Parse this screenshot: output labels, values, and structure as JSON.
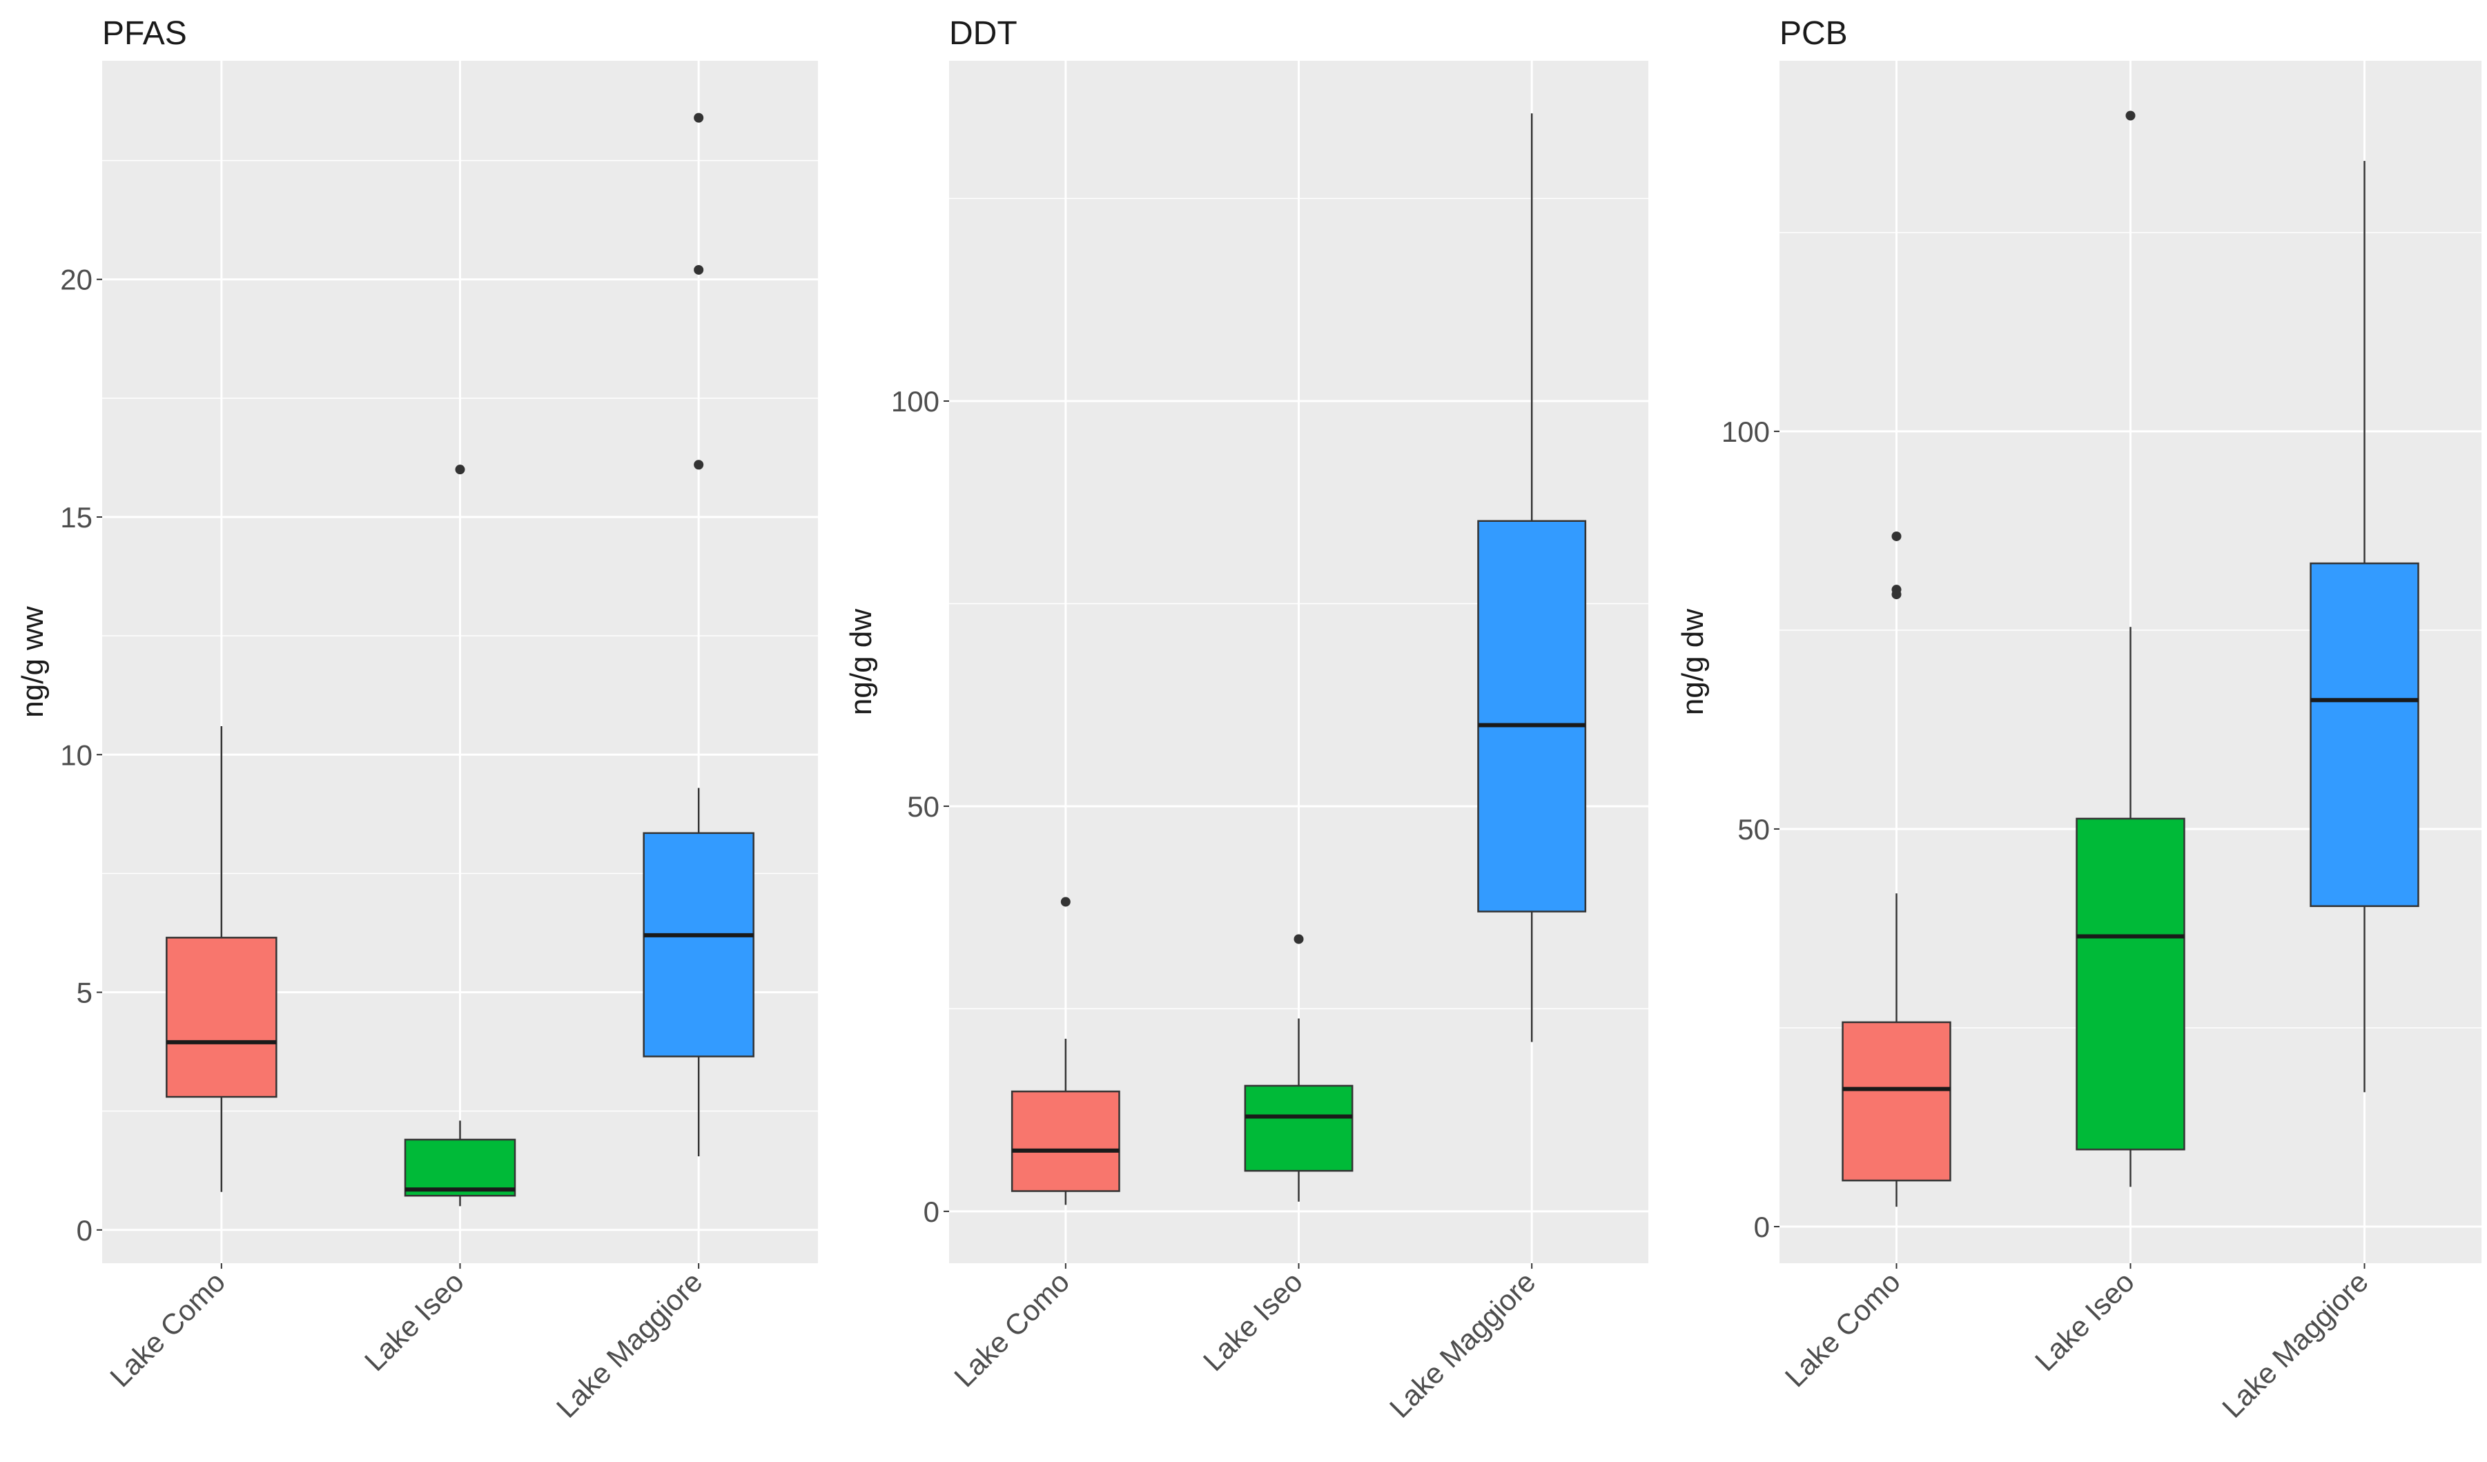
{
  "chart_data": [
    {
      "type": "boxplot",
      "title": "PFAS",
      "ylabel": "ng/g ww",
      "xlabel": "",
      "categories": [
        "Lake Como",
        "Lake Iseo",
        "Lake Maggiore"
      ],
      "ylim": [
        -0.7,
        24.6
      ],
      "yticks": [
        0,
        5,
        10,
        15,
        20
      ],
      "ytick_labels": [
        "0",
        "5",
        "10",
        "15",
        "20"
      ],
      "boxes": [
        {
          "category": "Lake Como",
          "color": "#F8766D",
          "min": 0.8,
          "q1": 2.8,
          "median": 3.95,
          "q3": 6.15,
          "max": 10.6,
          "outliers": []
        },
        {
          "category": "Lake Iseo",
          "color": "#00BA38",
          "min": 0.5,
          "q1": 0.72,
          "median": 0.85,
          "q3": 1.9,
          "max": 2.3,
          "outliers": [
            16.0
          ]
        },
        {
          "category": "Lake Maggiore",
          "color": "#339BFF",
          "min": 1.55,
          "q1": 3.65,
          "median": 6.2,
          "q3": 8.35,
          "max": 9.3,
          "outliers": [
            16.1,
            20.2,
            23.4
          ]
        }
      ]
    },
    {
      "type": "boxplot",
      "title": "DDT",
      "ylabel": "ng/g dw",
      "xlabel": "",
      "categories": [
        "Lake Como",
        "Lake Iseo",
        "Lake Maggiore"
      ],
      "ylim": [
        -6.4,
        142
      ],
      "yticks": [
        0,
        50,
        100
      ],
      "ytick_labels": [
        "0",
        "50",
        "100"
      ],
      "boxes": [
        {
          "category": "Lake Como",
          "color": "#F8766D",
          "min": 0.8,
          "q1": 2.5,
          "median": 7.5,
          "q3": 14.8,
          "max": 21.3,
          "outliers": [
            38.2
          ]
        },
        {
          "category": "Lake Iseo",
          "color": "#00BA38",
          "min": 1.2,
          "q1": 5.0,
          "median": 11.7,
          "q3": 15.5,
          "max": 23.8,
          "outliers": [
            33.6
          ]
        },
        {
          "category": "Lake Maggiore",
          "color": "#339BFF",
          "min": 20.9,
          "q1": 37.0,
          "median": 60.0,
          "q3": 85.2,
          "max": 135.5,
          "outliers": []
        }
      ]
    },
    {
      "type": "boxplot",
      "title": "PCB",
      "ylabel": "ng/g dw",
      "xlabel": "",
      "categories": [
        "Lake Como",
        "Lake Iseo",
        "Lake Maggiore"
      ],
      "ylim": [
        -4.6,
        146.6
      ],
      "yticks": [
        0,
        50,
        100
      ],
      "ytick_labels": [
        "0",
        "50",
        "100"
      ],
      "boxes": [
        {
          "category": "Lake Como",
          "color": "#F8766D",
          "min": 2.5,
          "q1": 5.8,
          "median": 17.3,
          "q3": 25.7,
          "max": 41.9,
          "outliers": [
            79.5,
            80.1,
            86.8
          ]
        },
        {
          "category": "Lake Iseo",
          "color": "#00BA38",
          "min": 5.0,
          "q1": 9.7,
          "median": 36.5,
          "q3": 51.3,
          "max": 75.4,
          "outliers": [
            139.7
          ]
        },
        {
          "category": "Lake Maggiore",
          "color": "#339BFF",
          "min": 16.9,
          "q1": 40.3,
          "median": 66.2,
          "q3": 83.4,
          "max": 134.0,
          "outliers": []
        }
      ]
    }
  ]
}
